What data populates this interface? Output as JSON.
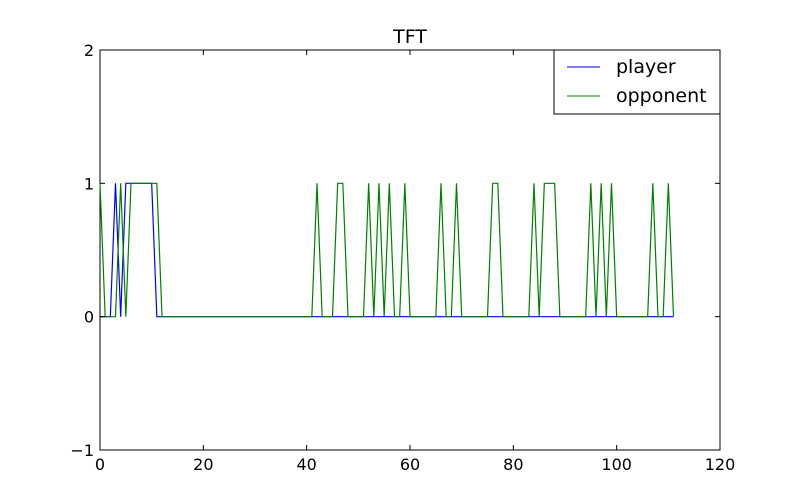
{
  "chart_data": {
    "type": "line",
    "title": "TFT",
    "xlabel": "",
    "ylabel": "",
    "xlim": [
      0,
      120
    ],
    "ylim": [
      -1,
      2
    ],
    "xticks": [
      0,
      20,
      40,
      60,
      80,
      100,
      120
    ],
    "yticks": [
      -1,
      0,
      1,
      2
    ],
    "xtick_labels": [
      "0",
      "20",
      "40",
      "60",
      "80",
      "100",
      "120"
    ],
    "ytick_labels": [
      "−1",
      "0",
      "1",
      "2"
    ],
    "grid": false,
    "legend_position": "top-right",
    "series": [
      {
        "name": "player",
        "color": "#0000ff",
        "x": [
          0,
          1,
          2,
          3,
          4,
          5,
          6,
          7,
          8,
          9,
          10,
          11,
          12,
          13,
          14,
          15,
          16,
          17,
          18,
          19,
          20,
          21,
          22,
          23,
          24,
          25,
          26,
          27,
          28,
          29,
          30,
          31,
          32,
          33,
          34,
          35,
          36,
          37,
          38,
          39,
          40,
          41,
          42,
          43,
          44,
          45,
          46,
          47,
          48,
          49,
          50,
          51,
          52,
          53,
          54,
          55,
          56,
          57,
          58,
          59,
          60,
          61,
          62,
          63,
          64,
          65,
          66,
          67,
          68,
          69,
          70,
          71,
          72,
          73,
          74,
          75,
          76,
          77,
          78,
          79,
          80,
          81,
          82,
          83,
          84,
          85,
          86,
          87,
          88,
          89,
          90,
          91,
          92,
          93,
          94,
          95,
          96,
          97,
          98,
          99,
          100,
          101,
          102,
          103,
          104,
          105,
          106,
          107,
          108,
          109,
          110,
          111
        ],
        "y": [
          0,
          0,
          0,
          1,
          0,
          1,
          1,
          1,
          1,
          1,
          1,
          0,
          0,
          0,
          0,
          0,
          0,
          0,
          0,
          0,
          0,
          0,
          0,
          0,
          0,
          0,
          0,
          0,
          0,
          0,
          0,
          0,
          0,
          0,
          0,
          0,
          0,
          0,
          0,
          0,
          0,
          0,
          0,
          0,
          0,
          0,
          0,
          0,
          0,
          0,
          0,
          0,
          0,
          0,
          0,
          0,
          0,
          0,
          0,
          0,
          0,
          0,
          0,
          0,
          0,
          0,
          0,
          0,
          0,
          0,
          0,
          0,
          0,
          0,
          0,
          0,
          0,
          0,
          0,
          0,
          0,
          0,
          0,
          0,
          0,
          0,
          0,
          0,
          0,
          0,
          0,
          0,
          0,
          0,
          0,
          0,
          0,
          0,
          0,
          0,
          0,
          0,
          0,
          0,
          0,
          0,
          0,
          0,
          0,
          0,
          0,
          0
        ]
      },
      {
        "name": "opponent",
        "color": "#008000",
        "x": [
          0,
          1,
          2,
          3,
          4,
          5,
          6,
          7,
          8,
          9,
          10,
          11,
          12,
          13,
          14,
          15,
          16,
          17,
          18,
          19,
          20,
          21,
          22,
          23,
          24,
          25,
          26,
          27,
          28,
          29,
          30,
          31,
          32,
          33,
          34,
          35,
          36,
          37,
          38,
          39,
          40,
          41,
          42,
          43,
          44,
          45,
          46,
          47,
          48,
          49,
          50,
          51,
          52,
          53,
          54,
          55,
          56,
          57,
          58,
          59,
          60,
          61,
          62,
          63,
          64,
          65,
          66,
          67,
          68,
          69,
          70,
          71,
          72,
          73,
          74,
          75,
          76,
          77,
          78,
          79,
          80,
          81,
          82,
          83,
          84,
          85,
          86,
          87,
          88,
          89,
          90,
          91,
          92,
          93,
          94,
          95,
          96,
          97,
          98,
          99,
          100,
          101,
          102,
          103,
          104,
          105,
          106,
          107,
          108,
          109,
          110,
          111
        ],
        "y": [
          1,
          0,
          0,
          0,
          1,
          0,
          1,
          1,
          1,
          1,
          1,
          1,
          0,
          0,
          0,
          0,
          0,
          0,
          0,
          0,
          0,
          0,
          0,
          0,
          0,
          0,
          0,
          0,
          0,
          0,
          0,
          0,
          0,
          0,
          0,
          0,
          0,
          0,
          0,
          0,
          0,
          0,
          1,
          0,
          0,
          0,
          1,
          1,
          0,
          0,
          0,
          0,
          1,
          0,
          1,
          0,
          1,
          0,
          0,
          1,
          0,
          0,
          0,
          0,
          0,
          0,
          1,
          0,
          0,
          1,
          0,
          0,
          0,
          0,
          0,
          0,
          1,
          1,
          0,
          0,
          0,
          0,
          0,
          0,
          1,
          0,
          1,
          1,
          1,
          0,
          0,
          0,
          0,
          0,
          0,
          1,
          0,
          1,
          0,
          1,
          0,
          0,
          0,
          0,
          0,
          0,
          0,
          1,
          0,
          0,
          1,
          0
        ]
      }
    ]
  }
}
